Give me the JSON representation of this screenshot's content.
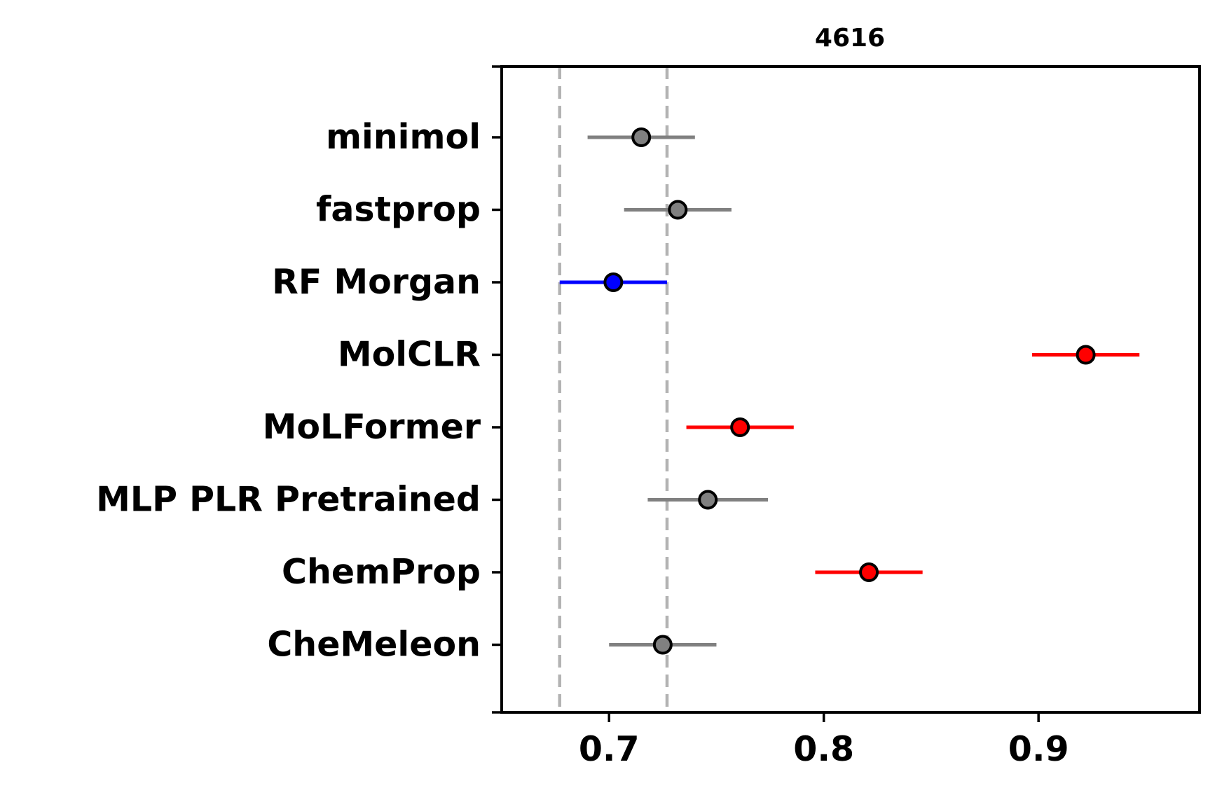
{
  "chart_data": {
    "type": "scatter",
    "title": "4616",
    "xlabel": "",
    "ylabel": "",
    "xlim": [
      0.65,
      0.975
    ],
    "xticks": [
      0.7,
      0.8,
      0.9
    ],
    "xtick_labels": [
      "0.7",
      "0.8",
      "0.9"
    ],
    "grid": false,
    "reference_lines": [
      0.677,
      0.727
    ],
    "colors": {
      "grey": "#808080",
      "blue": "#0000ff",
      "red": "#ff0000",
      "refline": "#b3b3b3"
    },
    "rows": [
      {
        "label": "minimol",
        "value": 0.715,
        "low": 0.69,
        "high": 0.74,
        "color": "grey"
      },
      {
        "label": "fastprop",
        "value": 0.732,
        "low": 0.707,
        "high": 0.757,
        "color": "grey"
      },
      {
        "label": "RF Morgan",
        "value": 0.702,
        "low": 0.677,
        "high": 0.727,
        "color": "blue"
      },
      {
        "label": "MolCLR",
        "value": 0.922,
        "low": 0.897,
        "high": 0.947,
        "color": "red"
      },
      {
        "label": "MoLFormer",
        "value": 0.761,
        "low": 0.736,
        "high": 0.786,
        "color": "red"
      },
      {
        "label": "MLP PLR Pretrained",
        "value": 0.746,
        "low": 0.718,
        "high": 0.774,
        "color": "grey"
      },
      {
        "label": "ChemProp",
        "value": 0.821,
        "low": 0.796,
        "high": 0.846,
        "color": "red"
      },
      {
        "label": "CheMeleon",
        "value": 0.725,
        "low": 0.7,
        "high": 0.75,
        "color": "grey"
      }
    ]
  }
}
